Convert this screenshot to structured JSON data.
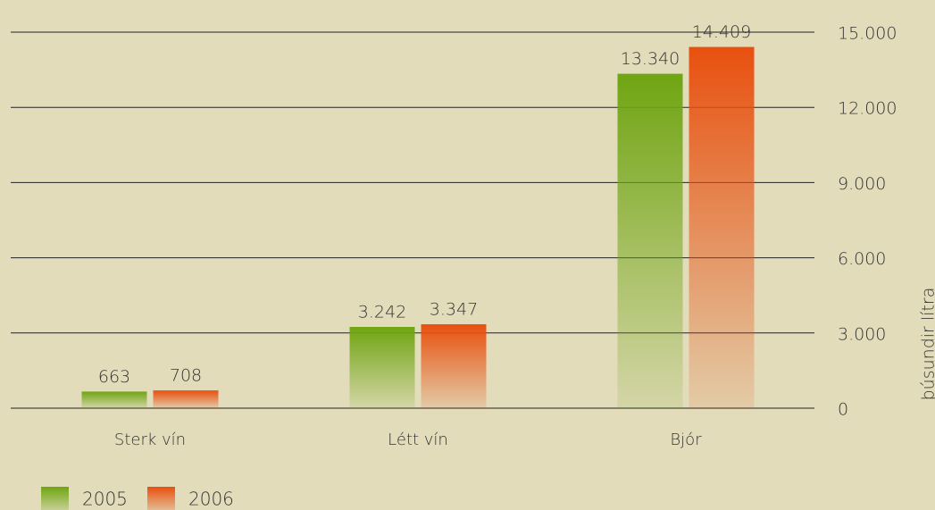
{
  "chart_data": {
    "type": "bar",
    "categories": [
      "Sterk vín",
      "Létt vín",
      "Bjór"
    ],
    "series": [
      {
        "name": "2005",
        "color": "#6fa512",
        "values": [
          663,
          3242,
          13340
        ],
        "value_labels": [
          "663",
          "3.242",
          "13.340"
        ]
      },
      {
        "name": "2006",
        "color": "#e8500f",
        "values": [
          708,
          3347,
          14409
        ],
        "value_labels": [
          "708",
          "3.347",
          "14.409"
        ]
      }
    ],
    "ylabel": "þúsundir lítra",
    "ylim": [
      0,
      15000
    ],
    "yticks": [
      0,
      {
        "value": 3000,
        "label": "3.000"
      },
      {
        "value": 6000,
        "label": "6.000"
      },
      {
        "value": 9000,
        "label": "9.000"
      },
      {
        "value": 12000,
        "label": "12.000"
      },
      {
        "value": 15000,
        "label": "15.000"
      }
    ],
    "grid": true,
    "y_axis_side": "right",
    "legend": "bottom-left"
  }
}
